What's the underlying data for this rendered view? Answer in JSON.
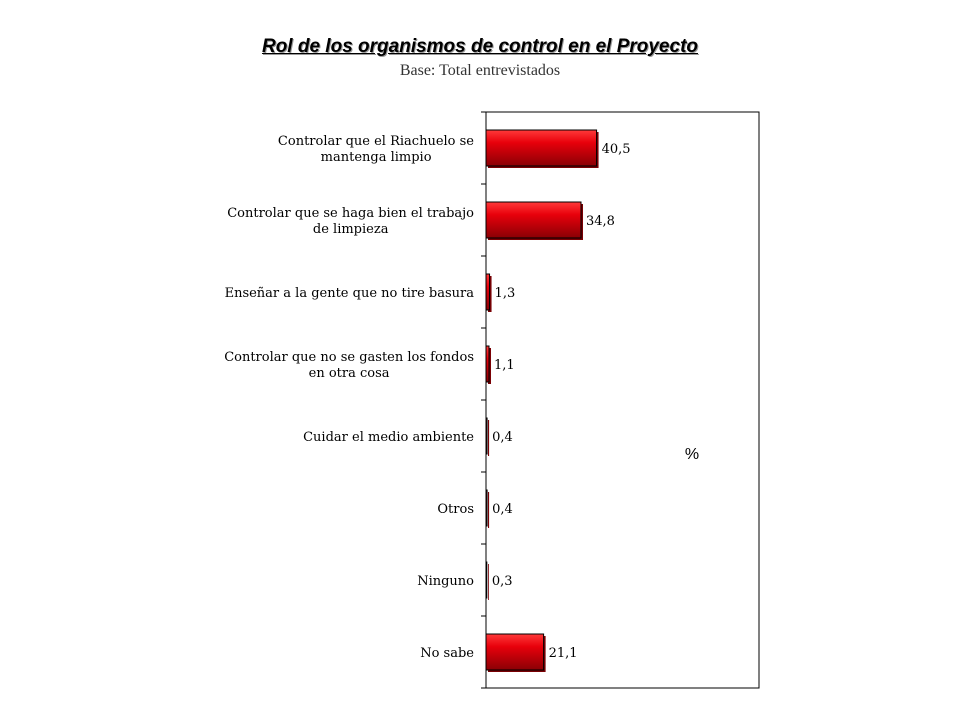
{
  "chart_data": {
    "type": "bar",
    "orientation": "horizontal",
    "title": "Rol de los organismos de control en el Proyecto",
    "subtitle": "Base: Total entrevistados",
    "unit_label": "%",
    "categories": [
      [
        "Controlar que el Riachuelo se",
        "mantenga limpio"
      ],
      [
        "Controlar que se haga bien el trabajo",
        "de limpieza"
      ],
      [
        "Enseñar a la gente que no tire basura"
      ],
      [
        "Controlar que no se gasten los fondos",
        "en otra cosa"
      ],
      [
        "Cuidar el medio ambiente"
      ],
      [
        "Otros"
      ],
      [
        "Ninguno"
      ],
      [
        "No sabe"
      ]
    ],
    "values": [
      40.5,
      34.8,
      1.3,
      1.1,
      0.4,
      0.4,
      0.3,
      21.1
    ],
    "value_labels": [
      "40,5",
      "34,8",
      "1,3",
      "1,1",
      "0,4",
      "0,4",
      "0,3",
      "21,1"
    ],
    "xlim": [
      0,
      100
    ],
    "bar_color": "#e8000b",
    "grid": false,
    "legend": "none"
  }
}
